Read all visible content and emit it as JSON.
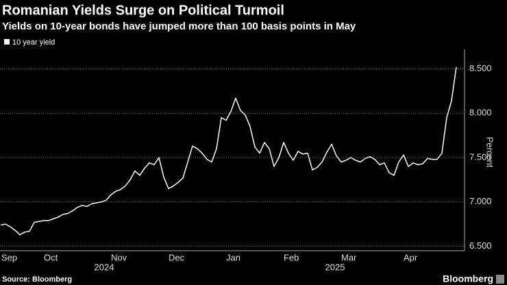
{
  "chart_data": {
    "type": "line",
    "title": "Romanian Yields Surge on Political Turmoil",
    "subtitle": "Yields on 10-year bonds have jumped more than 100 basis points in May",
    "y_label": "Percent",
    "source": "Source: Bloomberg",
    "brand": "Bloomberg",
    "year_labels": [
      "2024",
      "2025"
    ],
    "categories": [
      "Sep",
      null,
      null,
      null,
      null,
      null,
      null,
      null,
      null,
      "Oct",
      null,
      null,
      null,
      null,
      null,
      null,
      null,
      null,
      null,
      null,
      null,
      null,
      null,
      "Nov",
      null,
      null,
      null,
      null,
      null,
      null,
      null,
      null,
      null,
      null,
      null,
      "Dec",
      null,
      null,
      null,
      null,
      null,
      null,
      null,
      null,
      null,
      null,
      null,
      "Jan",
      null,
      null,
      null,
      null,
      null,
      null,
      null,
      null,
      null,
      null,
      null,
      "Feb",
      null,
      null,
      null,
      null,
      null,
      null,
      null,
      null,
      null,
      null,
      null,
      "Mar",
      null,
      null,
      null,
      null,
      null,
      null,
      null,
      null,
      null,
      null,
      null,
      null,
      "Apr",
      null,
      null,
      null,
      null,
      null,
      null,
      null,
      null,
      null,
      null,
      null
    ],
    "series": [
      {
        "name": "10 year yield",
        "color": "#ffffff",
        "values": [
          6.74,
          6.75,
          6.72,
          6.68,
          6.63,
          6.66,
          6.67,
          6.77,
          6.78,
          6.79,
          6.79,
          6.81,
          6.83,
          6.86,
          6.87,
          6.9,
          6.94,
          6.96,
          6.95,
          6.98,
          6.99,
          7.0,
          7.02,
          7.08,
          7.12,
          7.14,
          7.18,
          7.25,
          7.35,
          7.3,
          7.38,
          7.44,
          7.42,
          7.5,
          7.28,
          7.15,
          7.18,
          7.22,
          7.27,
          7.45,
          7.63,
          7.6,
          7.55,
          7.48,
          7.45,
          7.6,
          7.95,
          7.92,
          8.02,
          8.17,
          8.03,
          7.98,
          7.85,
          7.62,
          7.55,
          7.67,
          7.6,
          7.4,
          7.5,
          7.67,
          7.55,
          7.47,
          7.57,
          7.54,
          7.55,
          7.36,
          7.39,
          7.45,
          7.56,
          7.65,
          7.52,
          7.45,
          7.47,
          7.5,
          7.47,
          7.45,
          7.49,
          7.51,
          7.48,
          7.42,
          7.44,
          7.33,
          7.3,
          7.45,
          7.53,
          7.4,
          7.44,
          7.42,
          7.43,
          7.49,
          7.48,
          7.48,
          7.55,
          7.95,
          8.14,
          8.52
        ]
      }
    ],
    "ylim": [
      6.45,
      8.72
    ],
    "yticks": [
      {
        "value": 6.5,
        "label": "6.500"
      },
      {
        "value": 7.0,
        "label": "7.000"
      },
      {
        "value": 7.5,
        "label": "7.500"
      },
      {
        "value": 8.0,
        "label": "8.000"
      },
      {
        "value": 8.5,
        "label": "8.500"
      }
    ],
    "grid": true
  }
}
